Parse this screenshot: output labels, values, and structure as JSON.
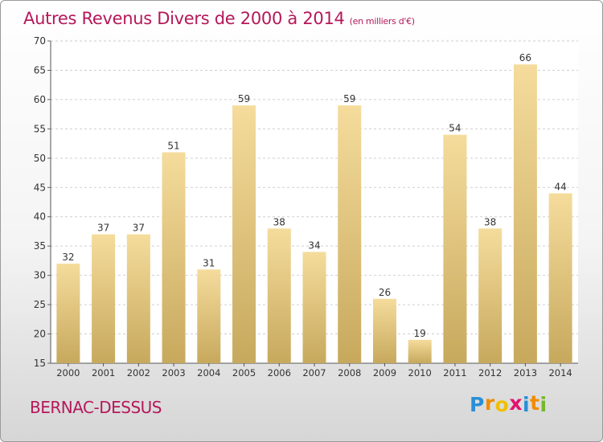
{
  "title": "Autres Revenus Divers de 2000 à 2014",
  "subtitle": "(en milliers d'€)",
  "place": "BERNAC-DESSUS",
  "logo": {
    "letters": [
      "P",
      "r",
      "o",
      "x",
      "i",
      "t",
      "i"
    ],
    "colors": [
      "#2a8fd6",
      "#f08c00",
      "#f0c000",
      "#e3126d",
      "#2a8fd6",
      "#f08c00",
      "#76b82a"
    ]
  },
  "chart_data": {
    "type": "bar",
    "categories": [
      "2000",
      "2001",
      "2002",
      "2003",
      "2004",
      "2005",
      "2006",
      "2007",
      "2008",
      "2009",
      "2010",
      "2011",
      "2012",
      "2013",
      "2014"
    ],
    "values": [
      32,
      37,
      37,
      51,
      31,
      59,
      38,
      34,
      59,
      26,
      19,
      54,
      38,
      66,
      44
    ],
    "ylim": [
      15,
      70
    ],
    "yticks": [
      15,
      20,
      25,
      30,
      35,
      40,
      45,
      50,
      55,
      60,
      65,
      70
    ],
    "grid": true,
    "bar_color_top": "#f5dc9c",
    "bar_color_bottom": "#c7a95d"
  }
}
